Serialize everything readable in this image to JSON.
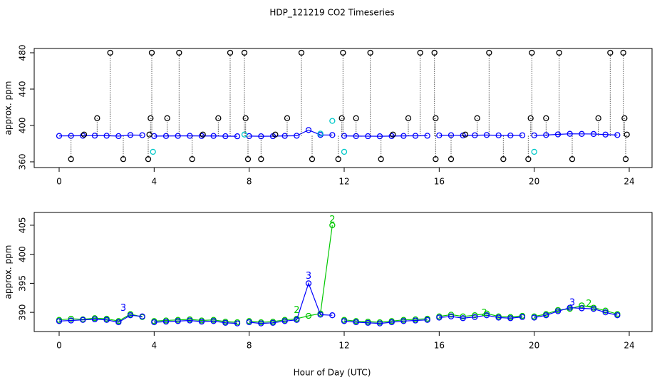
{
  "chart_data": [
    {
      "type": "line",
      "title": "HDP_121219  CO2 Timeseries",
      "ylabel": "approx. ppm",
      "xlim": [
        -1.05,
        24.96
      ],
      "ylim": [
        353.7,
        484.7
      ],
      "xticks": [
        0,
        4,
        8,
        12,
        16,
        20,
        24
      ],
      "yticks": [
        360,
        400,
        440,
        480
      ],
      "series": [
        {
          "color": "#0000ff",
          "line": true,
          "x": [
            0,
            0.5,
            1,
            1.5,
            2,
            2.5,
            3,
            3.5,
            3.75,
            4,
            4.5,
            5,
            5.5,
            6,
            6.5,
            7,
            7.5,
            7.75,
            8,
            8.5,
            9,
            9.5,
            10,
            10.5,
            11,
            11.5,
            11.75,
            12,
            12.5,
            13,
            13.5,
            14,
            14.5,
            15,
            15.5,
            15.75,
            16,
            16.5,
            17,
            17.5,
            18,
            18.5,
            19,
            19.5,
            19.75,
            20,
            20.5,
            21,
            21.5,
            22,
            22.5,
            23,
            23.5
          ],
          "values": [
            388.5,
            388.6,
            388.7,
            388.8,
            388.7,
            388.3,
            389.5,
            389.3,
            null,
            388.3,
            388.4,
            388.5,
            388.6,
            388.4,
            388.5,
            388.2,
            388.1,
            null,
            388.3,
            388.1,
            388.2,
            388.5,
            388.7,
            395,
            389.6,
            389.5,
            null,
            388.5,
            388.3,
            388.2,
            388.1,
            388.3,
            388.5,
            388.6,
            388.7,
            null,
            389.1,
            389.3,
            389,
            389.2,
            389.5,
            389.1,
            389,
            389.2,
            null,
            389.1,
            389.5,
            390.2,
            390.8,
            390.7,
            390.6,
            390,
            389.5
          ]
        },
        {
          "color": "#000000",
          "line": false,
          "spikes": true,
          "x": [
            2.15,
            3.9,
            5.05,
            7.2,
            7.8,
            10.2,
            11.95,
            13.1,
            15.2,
            15.8,
            18.1,
            19.9,
            21.05,
            23.2,
            23.75,
            0.5,
            2.7,
            3.75,
            5.6,
            7.95,
            8.5,
            10.65,
            11.75,
            13.55,
            15.85,
            16.5,
            18.7,
            19.75,
            21.6,
            23.85,
            1.6,
            3.85,
            4.55,
            6.7,
            7.85,
            9.6,
            11.9,
            12.5,
            14.7,
            15.85,
            17.6,
            19.85,
            20.5,
            22.7,
            23.8,
            1.05,
            3.8,
            6.05,
            9.1,
            14.05,
            17.1,
            23.9
          ],
          "values": [
            480,
            480,
            480,
            480,
            480,
            480,
            480,
            480,
            480,
            480,
            480,
            480,
            480,
            480,
            480,
            363,
            363,
            363,
            363,
            363,
            363,
            363,
            363,
            363,
            363,
            363,
            363,
            363,
            363,
            363,
            408,
            408,
            408,
            408,
            408,
            408,
            408,
            408,
            408,
            408,
            408,
            408,
            408,
            408,
            408,
            390,
            390,
            390,
            390,
            390,
            390,
            390
          ]
        },
        {
          "color": "#00c8c8",
          "line": false,
          "x": [
            3.95,
            11.5,
            12.0,
            20.0,
            11.0,
            7.8
          ],
          "values": [
            371,
            405,
            371,
            371,
            391,
            390
          ]
        }
      ]
    },
    {
      "type": "line",
      "ylabel": "approx. ppm",
      "xlabel": "Hour of Day (UTC)",
      "xlim": [
        -1.05,
        24.96
      ],
      "ylim": [
        386.7,
        407.2
      ],
      "xticks": [
        0,
        4,
        8,
        12,
        16,
        20,
        24
      ],
      "yticks": [
        390,
        395,
        400,
        405
      ],
      "series": [
        {
          "color": "#00c800",
          "line": true,
          "x": [
            0,
            0.5,
            1,
            1.5,
            2,
            2.5,
            3,
            3.5,
            3.75,
            4,
            4.5,
            5,
            5.5,
            6,
            6.5,
            7,
            7.5,
            7.75,
            8,
            8.5,
            9,
            9.5,
            10,
            10.5,
            11,
            11.5,
            11.75,
            12,
            12.5,
            13,
            13.5,
            14,
            14.5,
            15,
            15.5,
            15.75,
            16,
            16.5,
            17,
            17.5,
            18,
            18.5,
            19,
            19.5,
            19.75,
            20,
            20.5,
            21,
            21.5,
            22,
            22.5,
            23,
            23.5
          ],
          "values": [
            388.7,
            388.9,
            388.8,
            389.0,
            388.9,
            388.5,
            389.7,
            389.2,
            null,
            388.5,
            388.6,
            388.7,
            388.8,
            388.6,
            388.7,
            388.4,
            388.3,
            null,
            388.5,
            388.3,
            388.4,
            388.7,
            388.9,
            389.4,
            389.8,
            405,
            null,
            388.7,
            388.5,
            388.4,
            388.3,
            388.5,
            388.7,
            388.8,
            388.9,
            null,
            389.3,
            389.6,
            389.3,
            389.5,
            389.8,
            389.3,
            389.2,
            389.4,
            null,
            389.3,
            389.7,
            390.4,
            390.6,
            391.2,
            390.8,
            390.3,
            389.7
          ]
        },
        {
          "color": "#0000ff",
          "line": true,
          "x": [
            0,
            0.5,
            1,
            1.5,
            2,
            2.5,
            3,
            3.5,
            3.75,
            4,
            4.5,
            5,
            5.5,
            6,
            6.5,
            7,
            7.5,
            7.75,
            8,
            8.5,
            9,
            9.5,
            10,
            10.5,
            11,
            11.5,
            11.75,
            12,
            12.5,
            13,
            13.5,
            14,
            14.5,
            15,
            15.5,
            15.75,
            16,
            16.5,
            17,
            17.5,
            18,
            18.5,
            19,
            19.5,
            19.75,
            20,
            20.5,
            21,
            21.5,
            22,
            22.5,
            23,
            23.5
          ],
          "values": [
            388.5,
            388.6,
            388.7,
            388.8,
            388.7,
            388.3,
            389.5,
            389.3,
            null,
            388.3,
            388.4,
            388.5,
            388.6,
            388.4,
            388.5,
            388.2,
            388.1,
            null,
            388.3,
            388.1,
            388.2,
            388.5,
            388.7,
            395,
            389.6,
            389.5,
            null,
            388.5,
            388.3,
            388.2,
            388.1,
            388.3,
            388.5,
            388.6,
            388.7,
            null,
            389.1,
            389.3,
            389,
            389.2,
            389.5,
            389.1,
            389,
            389.2,
            null,
            389.1,
            389.5,
            390.2,
            390.8,
            390.7,
            390.6,
            390,
            389.5
          ]
        }
      ],
      "annotations": [
        {
          "text": "3",
          "x": 2.7,
          "y": 390.7,
          "color": "#0000ff"
        },
        {
          "text": "3",
          "x": 10.5,
          "y": 396.2,
          "color": "#0000ff"
        },
        {
          "text": "2",
          "x": 10.0,
          "y": 390.3,
          "color": "#00c800"
        },
        {
          "text": "2",
          "x": 11.5,
          "y": 405.9,
          "color": "#00c800"
        },
        {
          "text": "3",
          "x": 21.6,
          "y": 391.6,
          "color": "#0000ff"
        },
        {
          "text": "2",
          "x": 22.3,
          "y": 391.4,
          "color": "#00c800"
        },
        {
          "text": "2",
          "x": 17.9,
          "y": 389.8,
          "color": "#00c800"
        }
      ]
    }
  ]
}
